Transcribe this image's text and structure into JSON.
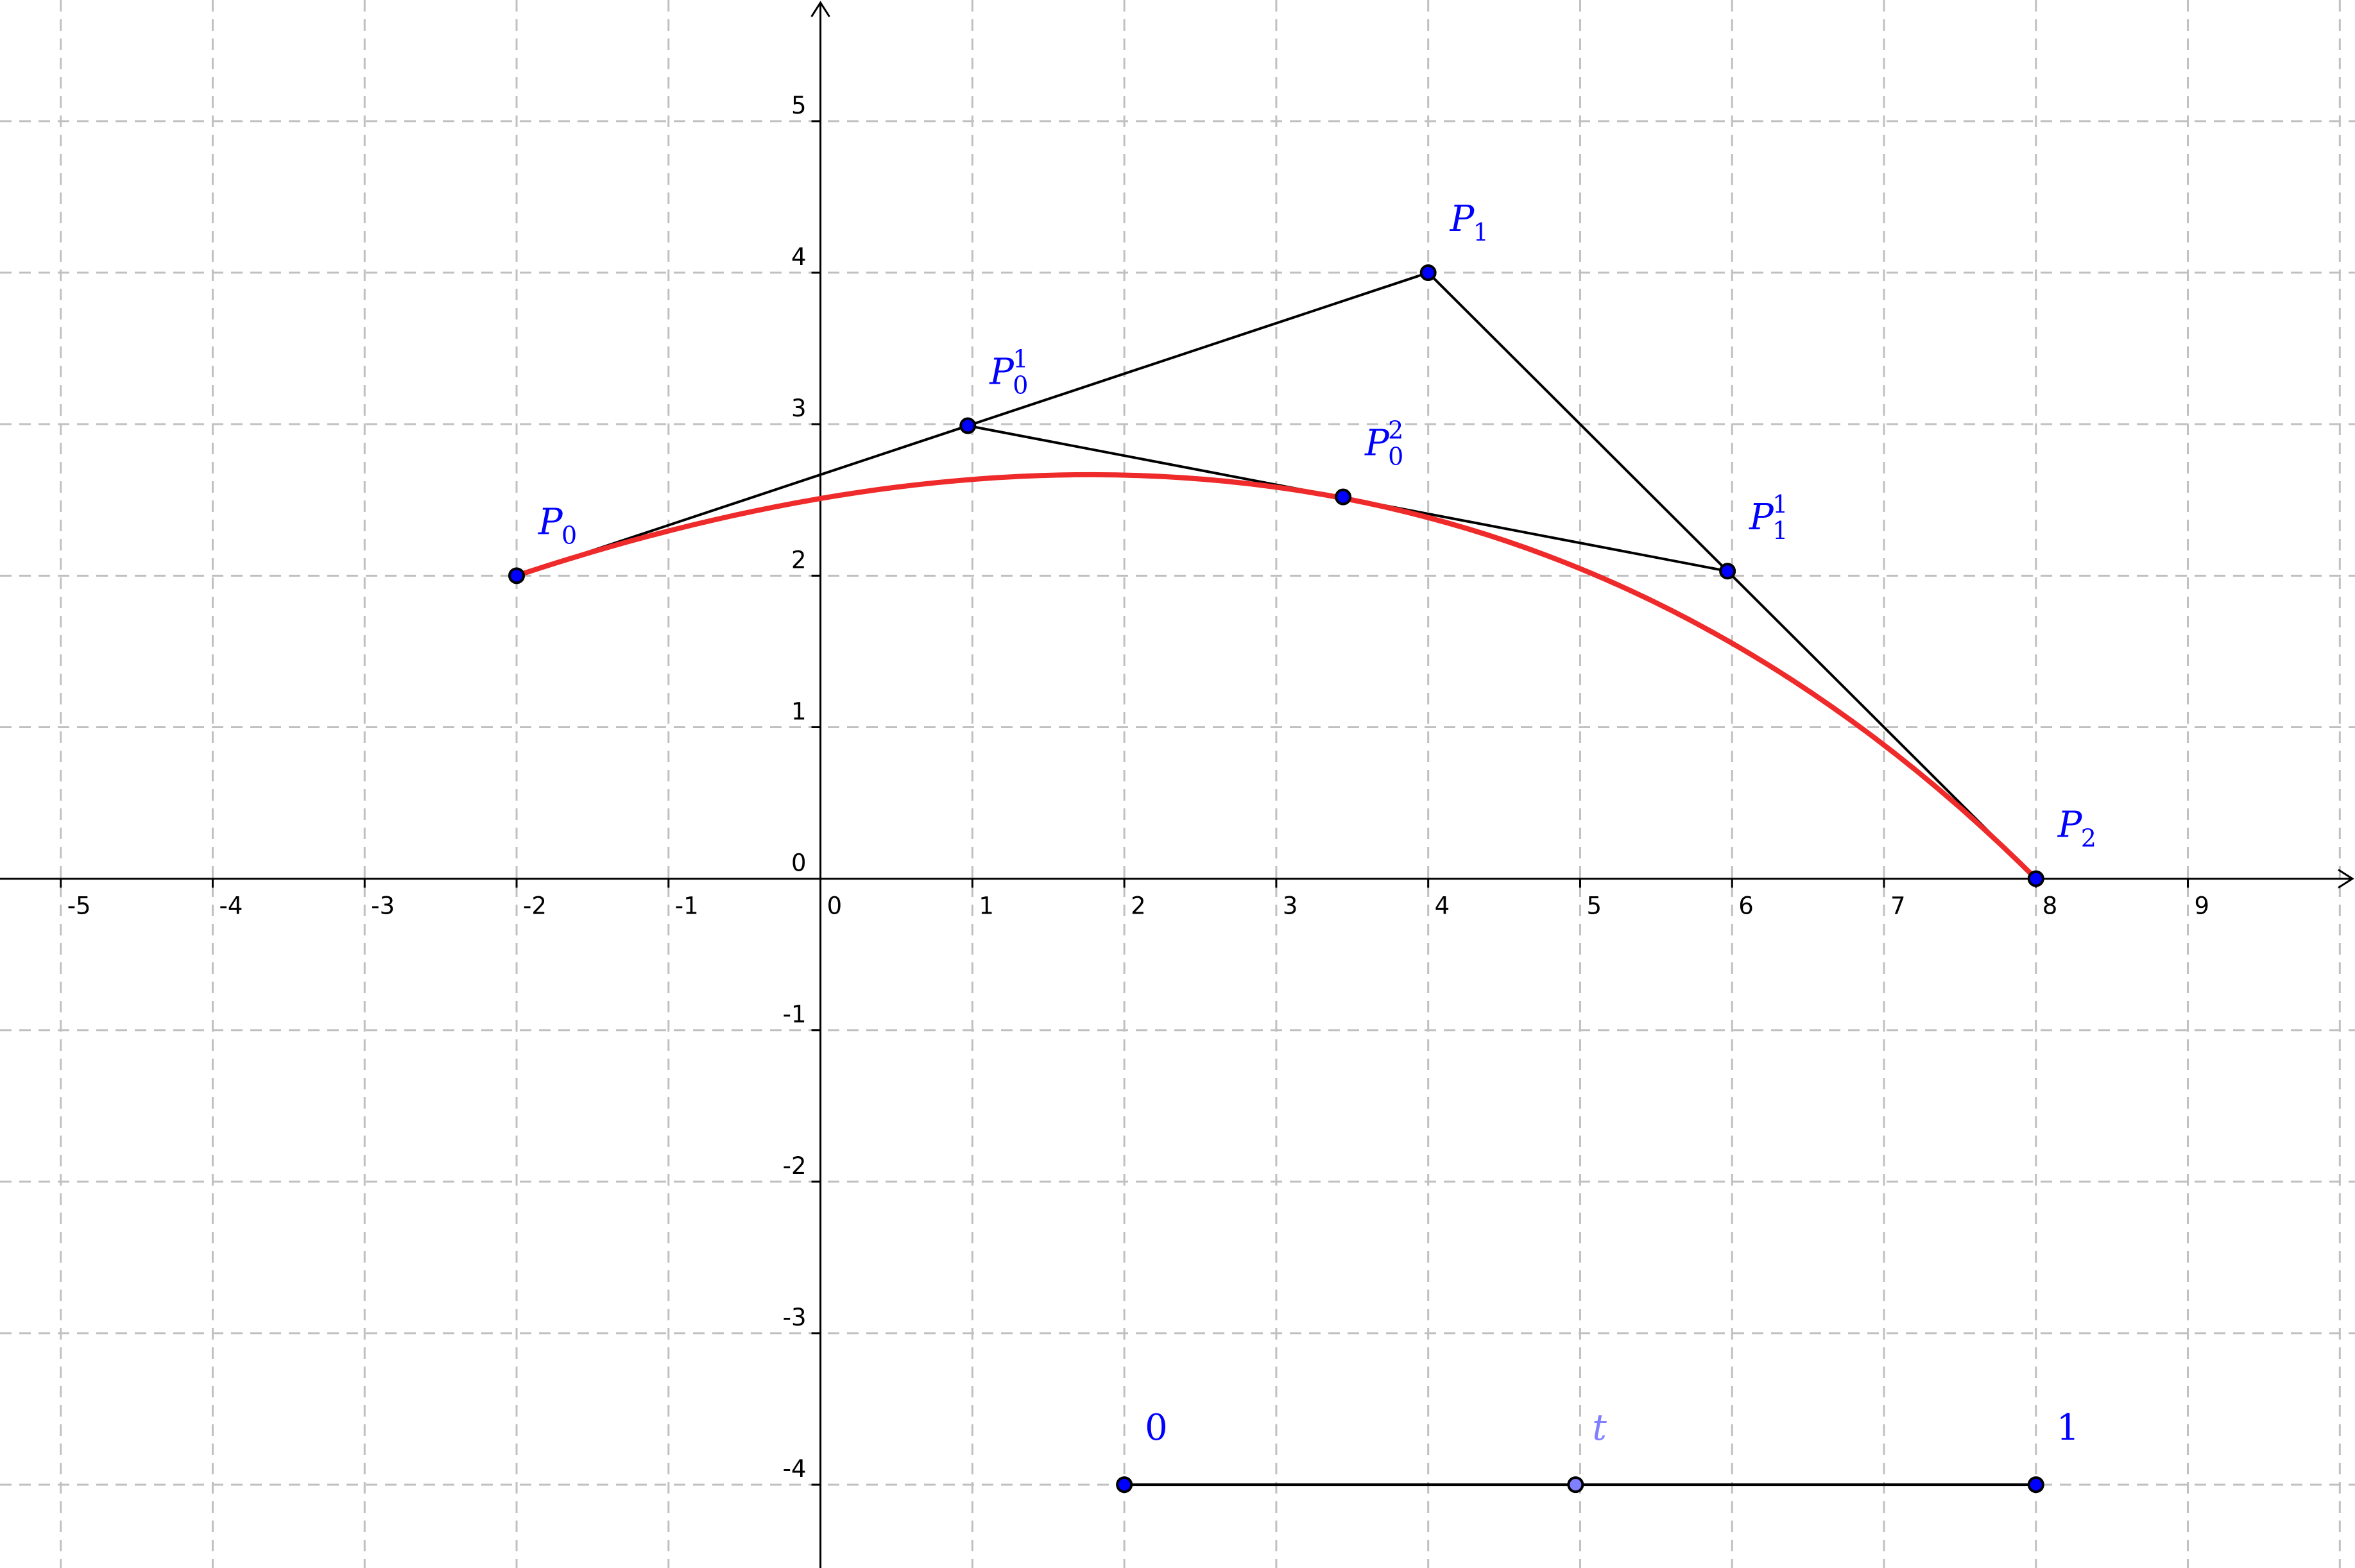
{
  "colors": {
    "point": "#0000ff",
    "label": "#0000ff",
    "slider_t": "#8080ff",
    "curve": "#ee2a2a",
    "segment": "#000000",
    "grid": "#c0c0c0"
  },
  "axes": {
    "x_range": [
      -5.4,
      10.1
    ],
    "y_range": [
      -4.55,
      5.8
    ],
    "x_ticks": [
      "-5",
      "-4",
      "-3",
      "-2",
      "-1",
      "0",
      "1",
      "2",
      "3",
      "4",
      "5",
      "6",
      "7",
      "8",
      "9"
    ],
    "y_ticks": [
      "-4",
      "-3",
      "-2",
      "-1",
      "0",
      "1",
      "2",
      "3",
      "4",
      "5"
    ],
    "grid": true
  },
  "points": [
    {
      "id": "P0",
      "base": "P",
      "sub": "0",
      "sup": "",
      "x": -2,
      "y": 2,
      "fill": "#0000ff"
    },
    {
      "id": "P1",
      "base": "P",
      "sub": "1",
      "sup": "",
      "x": 4,
      "y": 4,
      "fill": "#0000ff"
    },
    {
      "id": "P2",
      "base": "P",
      "sub": "2",
      "sup": "",
      "x": 8,
      "y": 0,
      "fill": "#0000ff"
    },
    {
      "id": "P01",
      "base": "P",
      "sub": "0",
      "sup": "1",
      "x": 0.97,
      "y": 2.99,
      "fill": "#0000ff"
    },
    {
      "id": "P11",
      "base": "P",
      "sub": "1",
      "sup": "1",
      "x": 5.97,
      "y": 2.03,
      "fill": "#0000ff"
    },
    {
      "id": "P02",
      "base": "P",
      "sub": "0",
      "sup": "2",
      "x": 3.44,
      "y": 2.52,
      "fill": "#0000ff"
    }
  ],
  "segments": [
    [
      "P0",
      "P1"
    ],
    [
      "P1",
      "P2"
    ],
    [
      "P01",
      "P11"
    ]
  ],
  "curve": {
    "type": "quadratic-bezier",
    "control_points": [
      "P0",
      "P1",
      "P2"
    ],
    "color": "#ee2a2a"
  },
  "slider": {
    "start": {
      "x": 2,
      "y": -4,
      "label": "0"
    },
    "end": {
      "x": 8,
      "y": -4,
      "label": "1"
    },
    "t": {
      "value": 0.495,
      "label": "t"
    }
  }
}
